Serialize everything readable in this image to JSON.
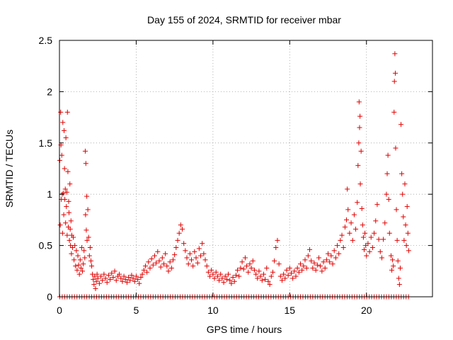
{
  "chart_data": {
    "type": "scatter",
    "title": "Day 155 of 2024, SRMTID for receiver mbar",
    "xlabel": "GPS time / hours",
    "ylabel": "SRMTID / TECUs",
    "xlim": [
      0,
      24.3
    ],
    "ylim": [
      0,
      2.5
    ],
    "xticks": [
      0,
      5,
      10,
      15,
      20
    ],
    "yticks": [
      0,
      0.5,
      1,
      1.5,
      2,
      2.5
    ],
    "xtick_labels": [
      "0",
      "5",
      "10",
      "15",
      "20"
    ],
    "ytick_labels": [
      "0",
      "0.5",
      "1",
      "1.5",
      "2",
      "2.5"
    ],
    "grid": true,
    "marker": "+",
    "color": "#e00000",
    "series": [
      {
        "name": "SRMTID",
        "points": [
          [
            0.02,
            1.33
          ],
          [
            0.05,
            0.7
          ],
          [
            0.08,
            1.8
          ],
          [
            0.1,
            1.48
          ],
          [
            0.12,
            0.95
          ],
          [
            0.15,
            1.38
          ],
          [
            0.18,
            1.0
          ],
          [
            0.2,
            0.62
          ],
          [
            0.22,
            1.7
          ],
          [
            0.25,
            1.01
          ],
          [
            0.28,
            0.8
          ],
          [
            0.3,
            1.62
          ],
          [
            0.33,
            1.25
          ],
          [
            0.35,
            0.95
          ],
          [
            0.38,
            1.05
          ],
          [
            0.4,
            0.72
          ],
          [
            0.42,
            1.55
          ],
          [
            0.45,
            0.88
          ],
          [
            0.48,
            1.02
          ],
          [
            0.5,
            0.6
          ],
          [
            0.52,
            1.8
          ],
          [
            0.55,
            1.22
          ],
          [
            0.58,
            0.68
          ],
          [
            0.6,
            0.93
          ],
          [
            0.62,
            0.82
          ],
          [
            0.65,
            0.55
          ],
          [
            0.68,
            1.1
          ],
          [
            0.7,
            0.66
          ],
          [
            0.72,
            0.5
          ],
          [
            0.75,
            0.74
          ],
          [
            0.78,
            0.42
          ],
          [
            0.8,
            0.6
          ],
          [
            0.85,
            0.48
          ],
          [
            0.9,
            0.58
          ],
          [
            0.95,
            0.36
          ],
          [
            1.0,
            0.5
          ],
          [
            1.05,
            0.3
          ],
          [
            1.1,
            0.45
          ],
          [
            1.15,
            0.26
          ],
          [
            1.2,
            0.4
          ],
          [
            1.25,
            0.31
          ],
          [
            1.3,
            0.22
          ],
          [
            1.35,
            0.36
          ],
          [
            1.4,
            0.28
          ],
          [
            1.45,
            0.48
          ],
          [
            1.5,
            0.25
          ],
          [
            1.55,
            0.32
          ],
          [
            1.6,
            0.45
          ],
          [
            1.65,
            0.38
          ],
          [
            1.68,
            1.42
          ],
          [
            1.7,
            0.8
          ],
          [
            1.72,
            1.3
          ],
          [
            1.75,
            0.65
          ],
          [
            1.78,
            0.98
          ],
          [
            1.8,
            0.55
          ],
          [
            1.85,
            0.85
          ],
          [
            1.9,
            0.58
          ],
          [
            1.95,
            0.4
          ],
          [
            2.0,
            0.48
          ],
          [
            2.05,
            0.35
          ],
          [
            2.1,
            0.3
          ],
          [
            2.15,
            0.22
          ],
          [
            2.2,
            0.17
          ],
          [
            2.25,
            0.12
          ],
          [
            2.3,
            0.2
          ],
          [
            2.35,
            0.08
          ],
          [
            2.4,
            0.15
          ],
          [
            2.45,
            0.22
          ],
          [
            2.5,
            0.18
          ],
          [
            2.6,
            0.13
          ],
          [
            2.7,
            0.2
          ],
          [
            2.8,
            0.16
          ],
          [
            2.9,
            0.22
          ],
          [
            3.0,
            0.18
          ],
          [
            3.1,
            0.14
          ],
          [
            3.2,
            0.21
          ],
          [
            3.3,
            0.17
          ],
          [
            3.4,
            0.23
          ],
          [
            3.5,
            0.19
          ],
          [
            3.6,
            0.25
          ],
          [
            3.7,
            0.16
          ],
          [
            3.8,
            0.2
          ],
          [
            3.9,
            0.22
          ],
          [
            4.0,
            0.18
          ],
          [
            4.1,
            0.15
          ],
          [
            4.2,
            0.2
          ],
          [
            4.3,
            0.17
          ],
          [
            4.4,
            0.14
          ],
          [
            4.5,
            0.19
          ],
          [
            4.6,
            0.16
          ],
          [
            4.7,
            0.21
          ],
          [
            4.8,
            0.18
          ],
          [
            4.9,
            0.15
          ],
          [
            5.0,
            0.2
          ],
          [
            5.1,
            0.17
          ],
          [
            5.2,
            0.13
          ],
          [
            5.3,
            0.19
          ],
          [
            5.4,
            0.22
          ],
          [
            5.5,
            0.26
          ],
          [
            5.6,
            0.3
          ],
          [
            5.7,
            0.24
          ],
          [
            5.8,
            0.34
          ],
          [
            5.9,
            0.28
          ],
          [
            6.0,
            0.37
          ],
          [
            6.1,
            0.31
          ],
          [
            6.2,
            0.4
          ],
          [
            6.3,
            0.33
          ],
          [
            6.4,
            0.44
          ],
          [
            6.5,
            0.35
          ],
          [
            6.6,
            0.29
          ],
          [
            6.7,
            0.38
          ],
          [
            6.8,
            0.32
          ],
          [
            6.9,
            0.42
          ],
          [
            7.0,
            0.3
          ],
          [
            7.1,
            0.25
          ],
          [
            7.2,
            0.34
          ],
          [
            7.3,
            0.28
          ],
          [
            7.4,
            0.36
          ],
          [
            7.5,
            0.41
          ],
          [
            7.6,
            0.48
          ],
          [
            7.7,
            0.55
          ],
          [
            7.8,
            0.62
          ],
          [
            7.9,
            0.7
          ],
          [
            8.0,
            0.66
          ],
          [
            8.1,
            0.52
          ],
          [
            8.2,
            0.45
          ],
          [
            8.3,
            0.38
          ],
          [
            8.4,
            0.32
          ],
          [
            8.5,
            0.42
          ],
          [
            8.6,
            0.36
          ],
          [
            8.7,
            0.3
          ],
          [
            8.8,
            0.44
          ],
          [
            8.9,
            0.38
          ],
          [
            9.0,
            0.33
          ],
          [
            9.1,
            0.47
          ],
          [
            9.2,
            0.4
          ],
          [
            9.3,
            0.52
          ],
          [
            9.4,
            0.42
          ],
          [
            9.5,
            0.36
          ],
          [
            9.6,
            0.3
          ],
          [
            9.7,
            0.24
          ],
          [
            9.8,
            0.2
          ],
          [
            9.9,
            0.26
          ],
          [
            10.0,
            0.22
          ],
          [
            10.1,
            0.18
          ],
          [
            10.2,
            0.24
          ],
          [
            10.3,
            0.2
          ],
          [
            10.4,
            0.16
          ],
          [
            10.5,
            0.22
          ],
          [
            10.6,
            0.18
          ],
          [
            10.7,
            0.14
          ],
          [
            10.8,
            0.2
          ],
          [
            10.9,
            0.17
          ],
          [
            11.0,
            0.22
          ],
          [
            11.1,
            0.16
          ],
          [
            11.2,
            0.13
          ],
          [
            11.3,
            0.19
          ],
          [
            11.4,
            0.15
          ],
          [
            11.5,
            0.21
          ],
          [
            11.6,
            0.26
          ],
          [
            11.7,
            0.2
          ],
          [
            11.8,
            0.28
          ],
          [
            11.9,
            0.34
          ],
          [
            12.0,
            0.27
          ],
          [
            12.1,
            0.38
          ],
          [
            12.2,
            0.3
          ],
          [
            12.3,
            0.24
          ],
          [
            12.4,
            0.32
          ],
          [
            12.5,
            0.28
          ],
          [
            12.6,
            0.35
          ],
          [
            12.7,
            0.26
          ],
          [
            12.8,
            0.22
          ],
          [
            12.9,
            0.18
          ],
          [
            13.0,
            0.25
          ],
          [
            13.1,
            0.2
          ],
          [
            13.2,
            0.16
          ],
          [
            13.3,
            0.22
          ],
          [
            13.4,
            0.17
          ],
          [
            13.5,
            0.28
          ],
          [
            13.6,
            0.15
          ],
          [
            13.7,
            0.12
          ],
          [
            13.8,
            0.2
          ],
          [
            13.9,
            0.24
          ],
          [
            14.0,
            0.35
          ],
          [
            14.1,
            0.48
          ],
          [
            14.2,
            0.55
          ],
          [
            14.3,
            0.32
          ],
          [
            14.4,
            0.2
          ],
          [
            14.5,
            0.16
          ],
          [
            14.6,
            0.22
          ],
          [
            14.7,
            0.18
          ],
          [
            14.8,
            0.26
          ],
          [
            14.9,
            0.21
          ],
          [
            15.0,
            0.28
          ],
          [
            15.1,
            0.23
          ],
          [
            15.2,
            0.18
          ],
          [
            15.3,
            0.25
          ],
          [
            15.4,
            0.2
          ],
          [
            15.5,
            0.28
          ],
          [
            15.6,
            0.24
          ],
          [
            15.7,
            0.32
          ],
          [
            15.8,
            0.26
          ],
          [
            15.9,
            0.3
          ],
          [
            16.0,
            0.36
          ],
          [
            16.1,
            0.28
          ],
          [
            16.2,
            0.4
          ],
          [
            16.3,
            0.46
          ],
          [
            16.4,
            0.35
          ],
          [
            16.5,
            0.28
          ],
          [
            16.6,
            0.33
          ],
          [
            16.7,
            0.26
          ],
          [
            16.8,
            0.31
          ],
          [
            16.9,
            0.38
          ],
          [
            17.0,
            0.3
          ],
          [
            17.1,
            0.25
          ],
          [
            17.2,
            0.34
          ],
          [
            17.3,
            0.28
          ],
          [
            17.4,
            0.36
          ],
          [
            17.5,
            0.42
          ],
          [
            17.6,
            0.34
          ],
          [
            17.7,
            0.4
          ],
          [
            17.8,
            0.32
          ],
          [
            17.9,
            0.45
          ],
          [
            18.0,
            0.38
          ],
          [
            18.1,
            0.5
          ],
          [
            18.2,
            0.42
          ],
          [
            18.3,
            0.55
          ],
          [
            18.4,
            0.6
          ],
          [
            18.5,
            0.48
          ],
          [
            18.6,
            0.68
          ],
          [
            18.7,
            0.75
          ],
          [
            18.75,
            1.05
          ],
          [
            18.8,
            0.85
          ],
          [
            18.9,
            0.62
          ],
          [
            19.0,
            0.72
          ],
          [
            19.1,
            0.55
          ],
          [
            19.2,
            0.8
          ],
          [
            19.3,
            0.66
          ],
          [
            19.4,
            0.92
          ],
          [
            19.45,
            1.28
          ],
          [
            19.5,
            1.5
          ],
          [
            19.52,
            1.9
          ],
          [
            19.55,
            1.65
          ],
          [
            19.58,
            1.76
          ],
          [
            19.6,
            1.1
          ],
          [
            19.65,
            1.42
          ],
          [
            19.7,
            0.86
          ],
          [
            19.75,
            0.7
          ],
          [
            19.8,
            0.58
          ],
          [
            19.85,
            0.46
          ],
          [
            19.9,
            0.62
          ],
          [
            19.95,
            0.5
          ],
          [
            20.0,
            0.4
          ],
          [
            20.1,
            0.52
          ],
          [
            20.2,
            0.44
          ],
          [
            20.3,
            0.58
          ],
          [
            20.4,
            0.48
          ],
          [
            20.5,
            0.62
          ],
          [
            20.6,
            0.74
          ],
          [
            20.7,
            0.9
          ],
          [
            20.8,
            0.56
          ],
          [
            20.9,
            0.44
          ],
          [
            21.0,
            0.38
          ],
          [
            21.1,
            0.56
          ],
          [
            21.2,
            0.72
          ],
          [
            21.3,
            1.0
          ],
          [
            21.35,
            1.2
          ],
          [
            21.4,
            1.38
          ],
          [
            21.45,
            0.95
          ],
          [
            21.5,
            0.62
          ],
          [
            21.6,
            0.4
          ],
          [
            21.65,
            0.26
          ],
          [
            21.7,
            0.36
          ],
          [
            21.75,
            0.3
          ],
          [
            21.8,
            1.8
          ],
          [
            21.82,
            2.1
          ],
          [
            21.85,
            2.37
          ],
          [
            21.88,
            2.18
          ],
          [
            21.9,
            1.45
          ],
          [
            21.95,
            0.85
          ],
          [
            22.0,
            0.55
          ],
          [
            22.05,
            0.35
          ],
          [
            22.1,
            0.18
          ],
          [
            22.15,
            0.12
          ],
          [
            22.2,
            0.28
          ],
          [
            22.25,
            1.68
          ],
          [
            22.3,
            1.2
          ],
          [
            22.35,
            1.0
          ],
          [
            22.4,
            0.78
          ],
          [
            22.45,
            0.55
          ],
          [
            22.5,
            1.1
          ],
          [
            22.55,
            0.7
          ],
          [
            22.6,
            0.5
          ],
          [
            22.65,
            0.88
          ],
          [
            22.7,
            0.62
          ],
          [
            22.75,
            0.45
          ]
        ]
      }
    ]
  }
}
